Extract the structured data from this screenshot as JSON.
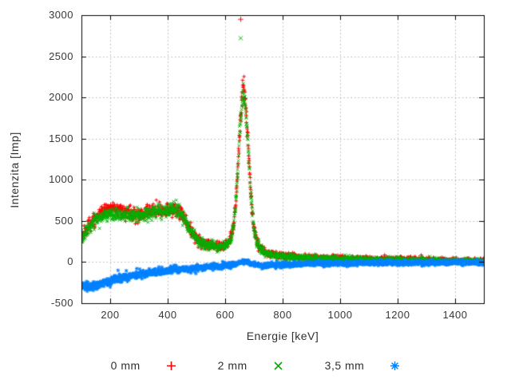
{
  "chart_data": {
    "type": "scatter",
    "title": "",
    "xlabel": "Energie [keV]",
    "ylabel": "Intenzita [Imp]",
    "xlim": [
      100,
      1500
    ],
    "ylim": [
      -500,
      3000
    ],
    "x_ticks": [
      200,
      400,
      600,
      800,
      1000,
      1200,
      1400
    ],
    "y_ticks": [
      -500,
      0,
      500,
      1000,
      1500,
      2000,
      2500,
      3000
    ],
    "grid": true,
    "legend_position": "bottom-center",
    "sample_step_kev": 0.7,
    "frame_color": "#000000",
    "grid_color": "#b4b4b4",
    "tick_label_color": "#383838",
    "series": [
      {
        "name": "0 mm",
        "marker": "plus",
        "color": "#ff0000",
        "noise": {
          "base": 10,
          "sqrt_coef": 1.3
        },
        "outliers": [
          [
            654,
            2950
          ]
        ],
        "anchors": [
          [
            100,
            310
          ],
          [
            110,
            360
          ],
          [
            120,
            410
          ],
          [
            130,
            460
          ],
          [
            140,
            505
          ],
          [
            150,
            545
          ],
          [
            160,
            580
          ],
          [
            170,
            605
          ],
          [
            180,
            625
          ],
          [
            190,
            640
          ],
          [
            200,
            648
          ],
          [
            210,
            652
          ],
          [
            220,
            648
          ],
          [
            230,
            640
          ],
          [
            240,
            628
          ],
          [
            250,
            612
          ],
          [
            260,
            598
          ],
          [
            270,
            588
          ],
          [
            280,
            582
          ],
          [
            290,
            580
          ],
          [
            300,
            582
          ],
          [
            310,
            586
          ],
          [
            320,
            592
          ],
          [
            330,
            598
          ],
          [
            340,
            605
          ],
          [
            350,
            612
          ],
          [
            360,
            618
          ],
          [
            370,
            623
          ],
          [
            380,
            628
          ],
          [
            390,
            632
          ],
          [
            400,
            636
          ],
          [
            410,
            640
          ],
          [
            420,
            642
          ],
          [
            430,
            640
          ],
          [
            440,
            625
          ],
          [
            450,
            590
          ],
          [
            460,
            530
          ],
          [
            470,
            455
          ],
          [
            480,
            385
          ],
          [
            490,
            330
          ],
          [
            500,
            290
          ],
          [
            510,
            262
          ],
          [
            520,
            242
          ],
          [
            530,
            227
          ],
          [
            540,
            215
          ],
          [
            550,
            206
          ],
          [
            560,
            200
          ],
          [
            570,
            196
          ],
          [
            580,
            194
          ],
          [
            590,
            196
          ],
          [
            600,
            205
          ],
          [
            610,
            228
          ],
          [
            615,
            250
          ],
          [
            620,
            290
          ],
          [
            625,
            355
          ],
          [
            630,
            470
          ],
          [
            635,
            650
          ],
          [
            640,
            900
          ],
          [
            645,
            1220
          ],
          [
            650,
            1560
          ],
          [
            655,
            1850
          ],
          [
            660,
            2040
          ],
          [
            663,
            2100
          ],
          [
            666,
            2080
          ],
          [
            670,
            1960
          ],
          [
            675,
            1740
          ],
          [
            680,
            1450
          ],
          [
            685,
            1130
          ],
          [
            690,
            840
          ],
          [
            695,
            600
          ],
          [
            700,
            430
          ],
          [
            705,
            320
          ],
          [
            710,
            250
          ],
          [
            715,
            205
          ],
          [
            720,
            175
          ],
          [
            730,
            140
          ],
          [
            740,
            120
          ],
          [
            750,
            107
          ],
          [
            760,
            98
          ],
          [
            780,
            85
          ],
          [
            800,
            76
          ],
          [
            850,
            62
          ],
          [
            900,
            54
          ],
          [
            950,
            48
          ],
          [
            1000,
            44
          ],
          [
            1050,
            40
          ],
          [
            1100,
            36
          ],
          [
            1150,
            33
          ],
          [
            1200,
            30
          ],
          [
            1250,
            27
          ],
          [
            1300,
            24
          ],
          [
            1350,
            21
          ],
          [
            1400,
            18
          ],
          [
            1450,
            15
          ],
          [
            1500,
            13
          ]
        ]
      },
      {
        "name": "2 mm",
        "marker": "cross",
        "color": "#00b000",
        "noise": {
          "base": 10,
          "sqrt_coef": 1.3
        },
        "outliers": [
          [
            654,
            2720
          ]
        ],
        "anchors": [
          [
            100,
            290
          ],
          [
            110,
            335
          ],
          [
            120,
            380
          ],
          [
            130,
            425
          ],
          [
            140,
            465
          ],
          [
            150,
            500
          ],
          [
            160,
            528
          ],
          [
            170,
            548
          ],
          [
            180,
            562
          ],
          [
            190,
            570
          ],
          [
            200,
            574
          ],
          [
            210,
            576
          ],
          [
            220,
            576
          ],
          [
            230,
            574
          ],
          [
            240,
            570
          ],
          [
            250,
            566
          ],
          [
            260,
            562
          ],
          [
            270,
            560
          ],
          [
            280,
            560
          ],
          [
            290,
            562
          ],
          [
            300,
            566
          ],
          [
            310,
            572
          ],
          [
            320,
            578
          ],
          [
            330,
            585
          ],
          [
            340,
            592
          ],
          [
            350,
            600
          ],
          [
            360,
            607
          ],
          [
            370,
            613
          ],
          [
            380,
            618
          ],
          [
            390,
            623
          ],
          [
            400,
            627
          ],
          [
            410,
            630
          ],
          [
            420,
            632
          ],
          [
            430,
            630
          ],
          [
            440,
            615
          ],
          [
            450,
            580
          ],
          [
            460,
            520
          ],
          [
            470,
            445
          ],
          [
            480,
            375
          ],
          [
            490,
            320
          ],
          [
            500,
            280
          ],
          [
            510,
            252
          ],
          [
            520,
            232
          ],
          [
            530,
            217
          ],
          [
            540,
            205
          ],
          [
            550,
            196
          ],
          [
            560,
            190
          ],
          [
            570,
            186
          ],
          [
            580,
            184
          ],
          [
            590,
            186
          ],
          [
            600,
            195
          ],
          [
            610,
            218
          ],
          [
            615,
            240
          ],
          [
            620,
            280
          ],
          [
            625,
            345
          ],
          [
            630,
            455
          ],
          [
            635,
            630
          ],
          [
            640,
            870
          ],
          [
            645,
            1180
          ],
          [
            650,
            1510
          ],
          [
            655,
            1790
          ],
          [
            660,
            1970
          ],
          [
            663,
            2020
          ],
          [
            666,
            2000
          ],
          [
            670,
            1890
          ],
          [
            675,
            1680
          ],
          [
            680,
            1400
          ],
          [
            685,
            1090
          ],
          [
            690,
            810
          ],
          [
            695,
            580
          ],
          [
            700,
            415
          ],
          [
            705,
            308
          ],
          [
            710,
            240
          ],
          [
            715,
            196
          ],
          [
            720,
            167
          ],
          [
            730,
            133
          ],
          [
            740,
            113
          ],
          [
            750,
            100
          ],
          [
            760,
            92
          ],
          [
            780,
            79
          ],
          [
            800,
            70
          ],
          [
            850,
            56
          ],
          [
            900,
            48
          ],
          [
            950,
            42
          ],
          [
            1000,
            38
          ],
          [
            1050,
            34
          ],
          [
            1100,
            31
          ],
          [
            1150,
            28
          ],
          [
            1200,
            25
          ],
          [
            1250,
            22
          ],
          [
            1300,
            20
          ],
          [
            1350,
            17
          ],
          [
            1400,
            15
          ],
          [
            1450,
            12
          ],
          [
            1500,
            10
          ]
        ]
      },
      {
        "name": "3,5 mm",
        "marker": "asterisk",
        "color": "#0080ff",
        "noise": {
          "base": 11,
          "sqrt_coef": 1.0
        },
        "outliers": [],
        "anchors": [
          [
            100,
            -290
          ],
          [
            110,
            -295
          ],
          [
            120,
            -298
          ],
          [
            130,
            -296
          ],
          [
            140,
            -290
          ],
          [
            150,
            -282
          ],
          [
            160,
            -272
          ],
          [
            170,
            -262
          ],
          [
            180,
            -252
          ],
          [
            190,
            -242
          ],
          [
            200,
            -232
          ],
          [
            220,
            -212
          ],
          [
            240,
            -193
          ],
          [
            260,
            -176
          ],
          [
            280,
            -161
          ],
          [
            300,
            -148
          ],
          [
            320,
            -137
          ],
          [
            340,
            -127
          ],
          [
            360,
            -118
          ],
          [
            380,
            -110
          ],
          [
            400,
            -103
          ],
          [
            420,
            -96
          ],
          [
            440,
            -90
          ],
          [
            460,
            -84
          ],
          [
            480,
            -78
          ],
          [
            500,
            -72
          ],
          [
            520,
            -66
          ],
          [
            540,
            -60
          ],
          [
            560,
            -54
          ],
          [
            580,
            -48
          ],
          [
            600,
            -42
          ],
          [
            620,
            -34
          ],
          [
            640,
            -20
          ],
          [
            650,
            -10
          ],
          [
            660,
            0
          ],
          [
            665,
            5
          ],
          [
            670,
            4
          ],
          [
            675,
            -2
          ],
          [
            680,
            -10
          ],
          [
            690,
            -22
          ],
          [
            700,
            -30
          ],
          [
            710,
            -36
          ],
          [
            720,
            -39
          ],
          [
            740,
            -40
          ],
          [
            760,
            -38
          ],
          [
            780,
            -35
          ],
          [
            800,
            -32
          ],
          [
            850,
            -26
          ],
          [
            900,
            -21
          ],
          [
            950,
            -18
          ],
          [
            1000,
            -15
          ],
          [
            1100,
            -12
          ],
          [
            1200,
            -10
          ],
          [
            1300,
            -8
          ],
          [
            1400,
            -7
          ],
          [
            1500,
            -6
          ]
        ]
      }
    ]
  }
}
